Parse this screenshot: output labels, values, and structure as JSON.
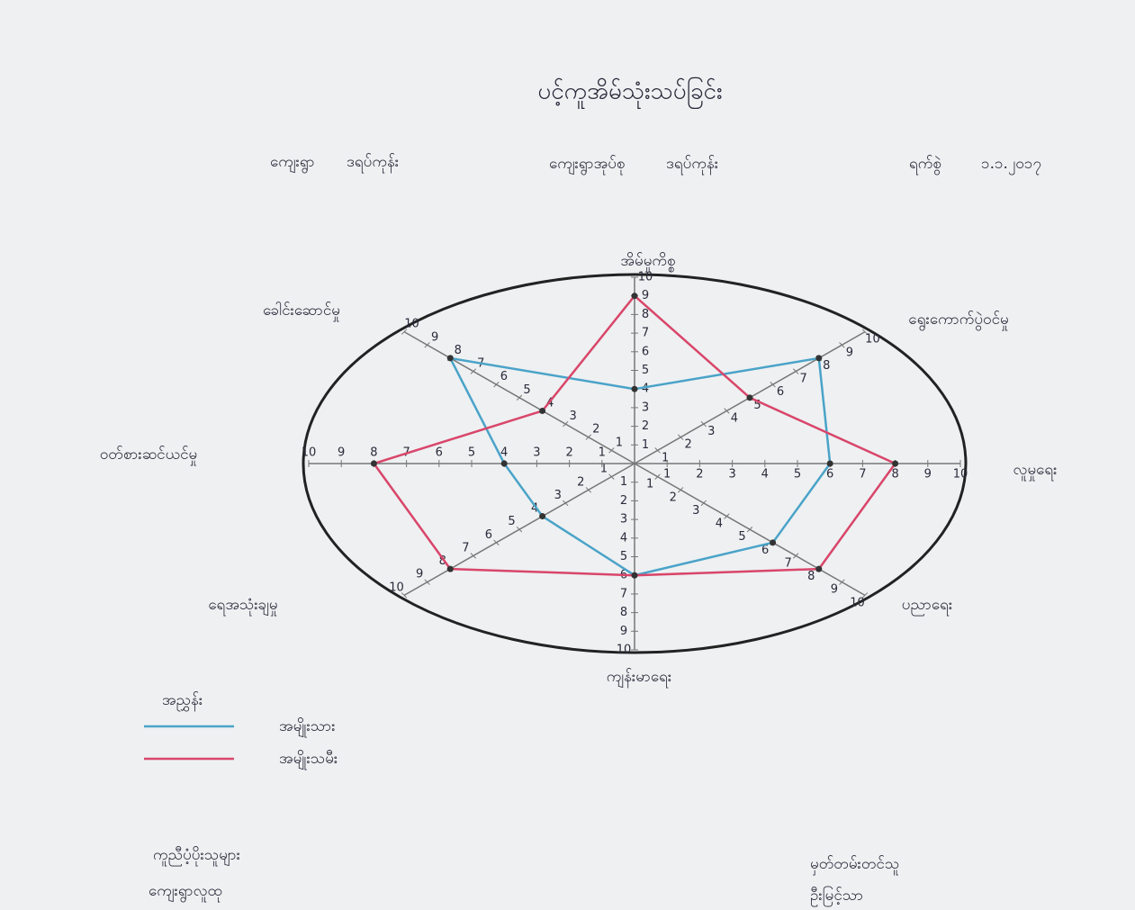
{
  "header": {
    "village_label": "ကျေးရွာ",
    "village": "ဒရပ်ကုန်း",
    "tract_label": "ကျေးရွာအုပ်စု",
    "tract": "ဒရပ်ကုန်း",
    "date_label": "ရက်စွဲ",
    "date": "၁.၁.၂၀၁၇"
  },
  "chart_data": {
    "type": "radar",
    "title": "ပင့်ကူအိမ်သုံးသပ်ခြင်း",
    "categories": [
      "အိမ်မှုကိစ္စ",
      "ရွေးကောက်ပွဲဝင်မှု",
      "လူမှုရေး",
      "ပညာရေး",
      "ကျန်းမာရေး",
      "ရေအသုံးချမှု",
      "ဝတ်စားဆင်ယင်မှု",
      "ခေါင်းဆောင်မှု"
    ],
    "rlim": [
      0,
      10
    ],
    "rticks": [
      1,
      2,
      3,
      4,
      5,
      6,
      7,
      8,
      9,
      10
    ],
    "legend_title": "အညွှန်း",
    "series": [
      {
        "name": "အမျိုးသား",
        "color": "#4aa3c8",
        "values": [
          4,
          8,
          6,
          6,
          6,
          4,
          4,
          8
        ]
      },
      {
        "name": "အမျိုးသမီး",
        "color": "#d9466a",
        "values": [
          9,
          5,
          8,
          8,
          6,
          8,
          8,
          4
        ]
      }
    ]
  },
  "footer": {
    "supporters_label": "ကူညီပံ့ပိုးသူများ",
    "supporters": "ကျေးရွာလူထု",
    "recorder_label": "မှတ်တမ်းတင်သူ",
    "recorder": "ဦးမြင့်သာ"
  }
}
